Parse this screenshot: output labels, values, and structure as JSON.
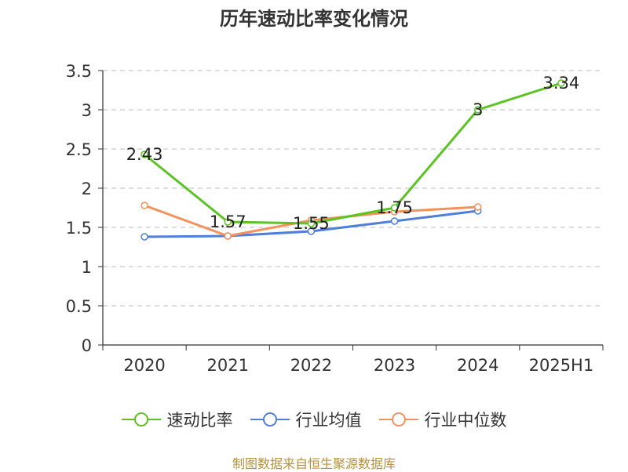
{
  "chart_data": {
    "type": "line",
    "title": "历年速动比率变化情况",
    "categories": [
      "2020",
      "2021",
      "2022",
      "2023",
      "2024",
      "2025H1"
    ],
    "ylim": [
      0,
      3.5
    ],
    "yticks": [
      "0",
      "0.5",
      "1",
      "1.5",
      "2",
      "2.5",
      "3",
      "3.5"
    ],
    "grid": true,
    "legend_position": "bottom",
    "series": [
      {
        "name": "速动比率",
        "color": "#5bc424",
        "values": [
          2.43,
          1.57,
          1.55,
          1.75,
          3,
          3.34
        ],
        "labels": [
          "2.43",
          "1.57",
          "1.55",
          "1.75",
          "3",
          "3.34"
        ]
      },
      {
        "name": "行业均值",
        "color": "#4f7fd9",
        "values": [
          1.38,
          1.39,
          1.45,
          1.58,
          1.71,
          null
        ],
        "labels": []
      },
      {
        "name": "行业中位数",
        "color": "#f5915a",
        "values": [
          1.78,
          1.39,
          1.59,
          1.7,
          1.76,
          null
        ],
        "labels": []
      }
    ]
  },
  "source": "制图数据来自恒生聚源数据库"
}
